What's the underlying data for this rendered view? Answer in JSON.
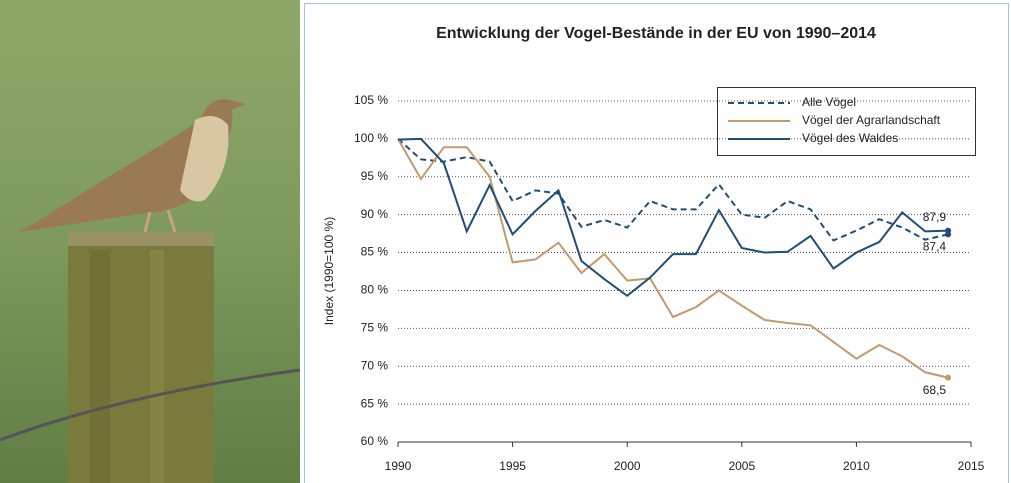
{
  "chart_data": {
    "type": "line",
    "title": "Entwicklung der Vogel-Bestände in der EU von 1990–2014",
    "y_label": "Index (1990=100 %)",
    "x": [
      1990,
      1991,
      1992,
      1993,
      1994,
      1995,
      1996,
      1997,
      1998,
      1999,
      2000,
      2001,
      2002,
      2003,
      2004,
      2005,
      2006,
      2007,
      2008,
      2009,
      2010,
      2011,
      2012,
      2013,
      2014
    ],
    "series": [
      {
        "name": "Alle Vögel",
        "color": "#1f4e79",
        "dashed": true,
        "values": [
          100,
          97.3,
          97,
          97.6,
          97,
          91.8,
          93.2,
          92.8,
          88.4,
          89.3,
          88.3,
          91.8,
          90.7,
          90.7,
          94,
          90,
          89.6,
          91.8,
          90.7,
          86.6,
          87.9,
          89.4,
          88.3,
          86.7,
          87.4
        ],
        "value_labels": [
          null,
          null,
          null,
          null,
          null,
          null,
          null,
          null,
          null,
          null,
          null,
          null,
          null,
          null,
          null,
          null,
          null,
          null,
          null,
          null,
          null,
          null,
          null,
          null,
          "87,4"
        ]
      },
      {
        "name": "Vögel der Agrarlandschaft",
        "color": "#c49a6c",
        "dashed": false,
        "values": [
          100,
          94.7,
          98.9,
          98.9,
          95,
          83.7,
          84.1,
          86.3,
          82.3,
          84.8,
          81.3,
          81.6,
          76.5,
          77.8,
          80,
          78,
          76.1,
          75.7,
          75.4,
          73.2,
          71,
          72.8,
          71.3,
          69.2,
          68.5
        ],
        "value_labels": [
          null,
          null,
          null,
          null,
          null,
          null,
          null,
          null,
          null,
          null,
          null,
          null,
          null,
          null,
          null,
          null,
          null,
          null,
          null,
          null,
          null,
          null,
          null,
          null,
          "68,5"
        ]
      },
      {
        "name": "Vögel des Waldes",
        "color": "#1f4e79",
        "dashed": false,
        "values": [
          99.9,
          100,
          96.8,
          87.8,
          93.9,
          87.4,
          90.5,
          93.2,
          83.9,
          81.5,
          79.3,
          81.7,
          84.8,
          84.8,
          90.6,
          85.6,
          85,
          85.1,
          87.2,
          82.9,
          85,
          86.4,
          90.3,
          87.8,
          87.9
        ],
        "value_labels": [
          null,
          null,
          null,
          null,
          null,
          null,
          null,
          null,
          null,
          null,
          null,
          null,
          null,
          null,
          null,
          null,
          null,
          null,
          null,
          null,
          null,
          null,
          null,
          null,
          "87,9"
        ]
      }
    ],
    "xlim": [
      1990,
      2015
    ],
    "xticks": [
      1990,
      1995,
      2000,
      2005,
      2010,
      2015
    ],
    "ylim": [
      60,
      105
    ],
    "yticks": [
      {
        "value": 60,
        "label": "60 %"
      },
      {
        "value": 65,
        "label": "65 %"
      },
      {
        "value": 70,
        "label": "70 %"
      },
      {
        "value": 75,
        "label": "75 %"
      },
      {
        "value": 80,
        "label": "80 %"
      },
      {
        "value": 85,
        "label": "85 %"
      },
      {
        "value": 90,
        "label": "90 %"
      },
      {
        "value": 95,
        "label": "95 %"
      },
      {
        "value": 100,
        "label": "100 %"
      },
      {
        "value": 105,
        "label": "105 %"
      }
    ],
    "grid": true,
    "legend": "upper right"
  }
}
